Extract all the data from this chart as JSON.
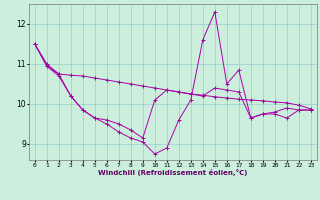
{
  "xlabel": "Windchill (Refroidissement éolien,°C)",
  "bg_color": "#cceedd",
  "grid_color": "#99cccc",
  "line_color": "#aa00aa",
  "x_ticks": [
    0,
    1,
    2,
    3,
    4,
    5,
    6,
    7,
    8,
    9,
    10,
    11,
    12,
    13,
    14,
    15,
    16,
    17,
    18,
    19,
    20,
    21,
    22,
    23
  ],
  "y_ticks": [
    9,
    10,
    11,
    12
  ],
  "ylim": [
    8.6,
    12.5
  ],
  "xlim": [
    -0.5,
    23.5
  ],
  "line1": [
    11.5,
    10.95,
    10.75,
    10.72,
    10.7,
    10.65,
    10.6,
    10.55,
    10.5,
    10.45,
    10.4,
    10.35,
    10.3,
    10.25,
    10.22,
    10.18,
    10.15,
    10.12,
    10.1,
    10.08,
    10.05,
    10.03,
    9.97,
    9.88
  ],
  "line2": [
    11.5,
    10.95,
    10.7,
    10.2,
    9.85,
    9.65,
    9.5,
    9.3,
    9.15,
    9.05,
    8.75,
    8.9,
    9.6,
    10.1,
    11.6,
    12.3,
    10.5,
    10.85,
    9.65,
    9.75,
    9.8,
    9.9,
    9.85,
    9.85
  ],
  "line3": [
    11.5,
    11.0,
    10.75,
    10.2,
    9.85,
    9.65,
    9.6,
    9.5,
    9.35,
    9.15,
    10.1,
    10.35,
    10.3,
    10.25,
    10.2,
    10.4,
    10.35,
    10.3,
    9.65,
    9.75,
    9.75,
    9.65,
    9.85,
    9.85
  ]
}
